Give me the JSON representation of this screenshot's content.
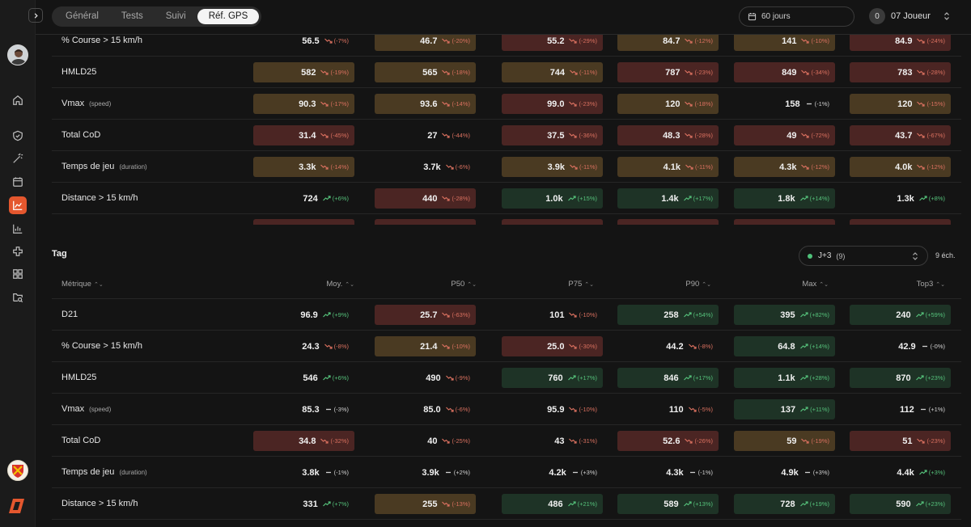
{
  "topbar": {
    "tabs": [
      "Général",
      "Tests",
      "Suivi",
      "Réf. GPS"
    ],
    "active_tab": "Réf. GPS",
    "period": "60 jours",
    "player_badge": "0",
    "player": "07 Joueur"
  },
  "colors": {
    "red": "#4b2523",
    "amber": "#4a3a22",
    "green": "#1e3326",
    "accent": "#e4572e",
    "up": "#55c07a",
    "down": "#d9705f"
  },
  "icons": [
    "chevron-right-icon",
    "calendar-icon",
    "chevron-updown-icon",
    "home-icon",
    "shield-icon",
    "magic-wand-icon",
    "calendar-icon",
    "line-chart-icon",
    "bar-chart-icon",
    "plus-cross-icon",
    "grid-icon",
    "folder-search-icon"
  ],
  "top_table": {
    "rows": [
      {
        "label": "% Course > 15 km/h",
        "sub": "",
        "cells": [
          {
            "v": "56.5",
            "t": "down",
            "p": "(-7%)",
            "c": "none"
          },
          {
            "v": "46.7",
            "t": "down",
            "p": "(-20%)",
            "c": "amber"
          },
          {
            "v": "55.2",
            "t": "down",
            "p": "(-29%)",
            "c": "red"
          },
          {
            "v": "84.7",
            "t": "down",
            "p": "(-12%)",
            "c": "amber"
          },
          {
            "v": "141",
            "t": "down",
            "p": "(-10%)",
            "c": "amber"
          },
          {
            "v": "84.9",
            "t": "down",
            "p": "(-24%)",
            "c": "red"
          }
        ]
      },
      {
        "label": "HMLD25",
        "sub": "",
        "cells": [
          {
            "v": "582",
            "t": "down",
            "p": "(-19%)",
            "c": "amber"
          },
          {
            "v": "565",
            "t": "down",
            "p": "(-18%)",
            "c": "amber"
          },
          {
            "v": "744",
            "t": "down",
            "p": "(-11%)",
            "c": "amber"
          },
          {
            "v": "787",
            "t": "down",
            "p": "(-23%)",
            "c": "red"
          },
          {
            "v": "849",
            "t": "down",
            "p": "(-34%)",
            "c": "red"
          },
          {
            "v": "783",
            "t": "down",
            "p": "(-28%)",
            "c": "red"
          }
        ]
      },
      {
        "label": "Vmax",
        "sub": "(speed)",
        "cells": [
          {
            "v": "90.3",
            "t": "down",
            "p": "(-17%)",
            "c": "amber"
          },
          {
            "v": "93.6",
            "t": "down",
            "p": "(-14%)",
            "c": "amber"
          },
          {
            "v": "99.0",
            "t": "down",
            "p": "(-23%)",
            "c": "red"
          },
          {
            "v": "120",
            "t": "down",
            "p": "(-18%)",
            "c": "amber"
          },
          {
            "v": "158",
            "t": "flat",
            "p": "(-1%)",
            "c": "none"
          },
          {
            "v": "120",
            "t": "down",
            "p": "(-15%)",
            "c": "amber"
          }
        ]
      },
      {
        "label": "Total CoD",
        "sub": "",
        "cells": [
          {
            "v": "31.4",
            "t": "down",
            "p": "(-45%)",
            "c": "red"
          },
          {
            "v": "27",
            "t": "down",
            "p": "(-44%)",
            "c": "none"
          },
          {
            "v": "37.5",
            "t": "down",
            "p": "(-36%)",
            "c": "red"
          },
          {
            "v": "48.3",
            "t": "down",
            "p": "(-28%)",
            "c": "red"
          },
          {
            "v": "49",
            "t": "down",
            "p": "(-72%)",
            "c": "red"
          },
          {
            "v": "43.7",
            "t": "down",
            "p": "(-67%)",
            "c": "red"
          }
        ]
      },
      {
        "label": "Temps de jeu",
        "sub": "(duration)",
        "cells": [
          {
            "v": "3.3k",
            "t": "down",
            "p": "(-14%)",
            "c": "amber"
          },
          {
            "v": "3.7k",
            "t": "down",
            "p": "(-6%)",
            "c": "none"
          },
          {
            "v": "3.9k",
            "t": "down",
            "p": "(-11%)",
            "c": "amber"
          },
          {
            "v": "4.1k",
            "t": "down",
            "p": "(-11%)",
            "c": "amber"
          },
          {
            "v": "4.3k",
            "t": "down",
            "p": "(-12%)",
            "c": "amber"
          },
          {
            "v": "4.0k",
            "t": "down",
            "p": "(-12%)",
            "c": "amber"
          }
        ]
      },
      {
        "label": "Distance > 15 km/h",
        "sub": "",
        "cells": [
          {
            "v": "724",
            "t": "up",
            "p": "(+6%)",
            "c": "none"
          },
          {
            "v": "440",
            "t": "down",
            "p": "(-28%)",
            "c": "red"
          },
          {
            "v": "1.0k",
            "t": "up",
            "p": "(+15%)",
            "c": "green"
          },
          {
            "v": "1.4k",
            "t": "up",
            "p": "(+17%)",
            "c": "green"
          },
          {
            "v": "1.8k",
            "t": "up",
            "p": "(+14%)",
            "c": "green"
          },
          {
            "v": "1.3k",
            "t": "up",
            "p": "(+8%)",
            "c": "none"
          }
        ]
      }
    ]
  },
  "tag_section": {
    "title": "Tag",
    "filter_label": "J+3",
    "filter_count": "(9)",
    "samples": "9 éch.",
    "headers": [
      "Métrique",
      "Moy.",
      "P50",
      "P75",
      "P90",
      "Max",
      "Top3"
    ],
    "rows": [
      {
        "label": "D21",
        "sub": "",
        "cells": [
          {
            "v": "96.9",
            "t": "up",
            "p": "(+9%)",
            "c": "none"
          },
          {
            "v": "25.7",
            "t": "down",
            "p": "(-63%)",
            "c": "red"
          },
          {
            "v": "101",
            "t": "down",
            "p": "(-10%)",
            "c": "none"
          },
          {
            "v": "258",
            "t": "up",
            "p": "(+54%)",
            "c": "green"
          },
          {
            "v": "395",
            "t": "up",
            "p": "(+82%)",
            "c": "green"
          },
          {
            "v": "240",
            "t": "up",
            "p": "(+59%)",
            "c": "green"
          }
        ]
      },
      {
        "label": "% Course > 15 km/h",
        "sub": "",
        "cells": [
          {
            "v": "24.3",
            "t": "down",
            "p": "(-8%)",
            "c": "none"
          },
          {
            "v": "21.4",
            "t": "down",
            "p": "(-10%)",
            "c": "amber"
          },
          {
            "v": "25.0",
            "t": "down",
            "p": "(-30%)",
            "c": "red"
          },
          {
            "v": "44.2",
            "t": "down",
            "p": "(-8%)",
            "c": "none"
          },
          {
            "v": "64.8",
            "t": "up",
            "p": "(+14%)",
            "c": "green"
          },
          {
            "v": "42.9",
            "t": "flat",
            "p": "(-0%)",
            "c": "none"
          }
        ]
      },
      {
        "label": "HMLD25",
        "sub": "",
        "cells": [
          {
            "v": "546",
            "t": "up",
            "p": "(+6%)",
            "c": "none"
          },
          {
            "v": "490",
            "t": "down",
            "p": "(-9%)",
            "c": "none"
          },
          {
            "v": "760",
            "t": "up",
            "p": "(+17%)",
            "c": "green"
          },
          {
            "v": "846",
            "t": "up",
            "p": "(+17%)",
            "c": "green"
          },
          {
            "v": "1.1k",
            "t": "up",
            "p": "(+28%)",
            "c": "green"
          },
          {
            "v": "870",
            "t": "up",
            "p": "(+23%)",
            "c": "green"
          }
        ]
      },
      {
        "label": "Vmax",
        "sub": "(speed)",
        "cells": [
          {
            "v": "85.3",
            "t": "flat",
            "p": "(-3%)",
            "c": "none"
          },
          {
            "v": "85.0",
            "t": "down",
            "p": "(-6%)",
            "c": "none"
          },
          {
            "v": "95.9",
            "t": "down",
            "p": "(-10%)",
            "c": "none"
          },
          {
            "v": "110",
            "t": "down",
            "p": "(-5%)",
            "c": "none"
          },
          {
            "v": "137",
            "t": "up",
            "p": "(+11%)",
            "c": "green"
          },
          {
            "v": "112",
            "t": "flat",
            "p": "(+1%)",
            "c": "none"
          }
        ]
      },
      {
        "label": "Total CoD",
        "sub": "",
        "cells": [
          {
            "v": "34.8",
            "t": "down",
            "p": "(-32%)",
            "c": "red"
          },
          {
            "v": "40",
            "t": "down",
            "p": "(-25%)",
            "c": "none"
          },
          {
            "v": "43",
            "t": "down",
            "p": "(-31%)",
            "c": "none"
          },
          {
            "v": "52.6",
            "t": "down",
            "p": "(-26%)",
            "c": "red"
          },
          {
            "v": "59",
            "t": "down",
            "p": "(-19%)",
            "c": "amber"
          },
          {
            "v": "51",
            "t": "down",
            "p": "(-23%)",
            "c": "red"
          }
        ]
      },
      {
        "label": "Temps de jeu",
        "sub": "(duration)",
        "cells": [
          {
            "v": "3.8k",
            "t": "flat",
            "p": "(-1%)",
            "c": "none"
          },
          {
            "v": "3.9k",
            "t": "flat",
            "p": "(+2%)",
            "c": "none"
          },
          {
            "v": "4.2k",
            "t": "flat",
            "p": "(+3%)",
            "c": "none"
          },
          {
            "v": "4.3k",
            "t": "flat",
            "p": "(-1%)",
            "c": "none"
          },
          {
            "v": "4.9k",
            "t": "flat",
            "p": "(+3%)",
            "c": "none"
          },
          {
            "v": "4.4k",
            "t": "up",
            "p": "(+3%)",
            "c": "none"
          }
        ]
      },
      {
        "label": "Distance > 15 km/h",
        "sub": "",
        "cells": [
          {
            "v": "331",
            "t": "up",
            "p": "(+7%)",
            "c": "none"
          },
          {
            "v": "255",
            "t": "down",
            "p": "(-13%)",
            "c": "amber"
          },
          {
            "v": "486",
            "t": "up",
            "p": "(+21%)",
            "c": "green"
          },
          {
            "v": "589",
            "t": "up",
            "p": "(+13%)",
            "c": "green"
          },
          {
            "v": "728",
            "t": "up",
            "p": "(+19%)",
            "c": "green"
          },
          {
            "v": "590",
            "t": "up",
            "p": "(+23%)",
            "c": "green"
          }
        ]
      }
    ]
  }
}
